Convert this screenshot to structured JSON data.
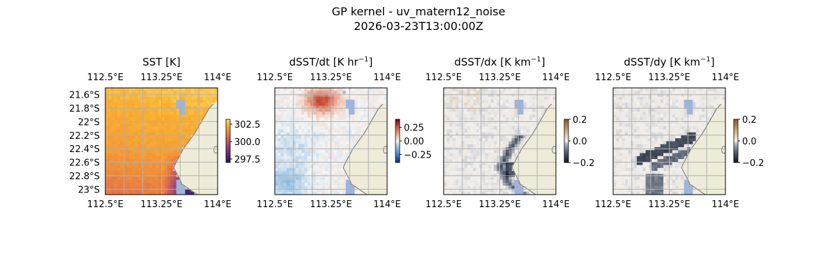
{
  "figure": {
    "title_line1": "GP kernel - uv_matern12_noise",
    "title_line2": "2026-03-23T13:00:00Z"
  },
  "chart_data": [
    {
      "type": "heatmap",
      "title": "SST [K]",
      "title_base": "SST [K]",
      "title_sup": "",
      "x_ticks": [
        "112.5°E",
        "113.25°E",
        "114°E"
      ],
      "y_ticks": [
        "21.6°S",
        "21.8°S",
        "22°S",
        "22.2°S",
        "22.4°S",
        "22.6°S",
        "22.8°S",
        "23°S"
      ],
      "show_y_ticks": true,
      "colorbar": {
        "ticks": [
          "297.5",
          "300.0",
          "302.5"
        ],
        "range": [
          297.0,
          303.2
        ],
        "cmap": "plasma-like"
      },
      "field": "sst"
    },
    {
      "type": "heatmap",
      "title": "dSST/dt [K hr-1]",
      "title_base": "dSST/dt [K hr",
      "title_sup": "−1",
      "x_ticks": [
        "112.5°E",
        "113.25°E",
        "114°E"
      ],
      "y_ticks": [],
      "show_y_ticks": false,
      "colorbar": {
        "ticks": [
          "0.25",
          "0.00",
          "−0.25"
        ],
        "range": [
          -0.4,
          0.4
        ],
        "cmap": "diverging-blue-red"
      },
      "field": "dt"
    },
    {
      "type": "heatmap",
      "title": "dSST/dx [K km-1]",
      "title_base": "dSST/dx [K km",
      "title_sup": "−1",
      "x_ticks": [
        "112.5°E",
        "113.25°E",
        "114°E"
      ],
      "y_ticks": [],
      "show_y_ticks": false,
      "colorbar": {
        "ticks": [
          "0.2",
          "0.0",
          "−0.2"
        ],
        "range": [
          -0.2,
          0.2
        ],
        "cmap": "diverging-grey-brown"
      },
      "field": "dx"
    },
    {
      "type": "heatmap",
      "title": "dSST/dy [K km-1]",
      "title_base": "dSST/dy [K km",
      "title_sup": "−1",
      "x_ticks": [
        "112.5°E",
        "113.25°E",
        "114°E"
      ],
      "y_ticks": [],
      "show_y_ticks": false,
      "colorbar": {
        "ticks": [
          "0.2",
          "0.0",
          "−0.2"
        ],
        "range": [
          -0.2,
          0.2
        ],
        "cmap": "diverging-grey-brown"
      },
      "field": "dy"
    }
  ],
  "colors": {
    "land": "#eeecd8",
    "missing": "#9bb5e0",
    "coast": "#7f7f7f",
    "grid": "#b0b0b0"
  }
}
